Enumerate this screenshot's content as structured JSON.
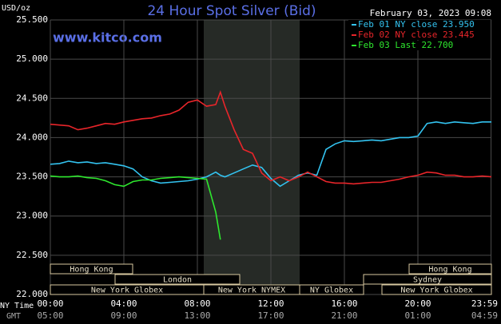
{
  "chart_data": {
    "type": "line",
    "title": "24 Hour Spot Silver (Bid)",
    "timestamp": "February 03, 2023 09:08",
    "watermark": "www.kitco.com",
    "y_label": "USD/oz",
    "x_label": "NY Time",
    "x2_label": "GMT",
    "xlim": [
      0,
      24
    ],
    "ylim": [
      22,
      25.5
    ],
    "xticks": [
      {
        "value": 0,
        "label": "00:00"
      },
      {
        "value": 4,
        "label": "04:00"
      },
      {
        "value": 8,
        "label": "08:00"
      },
      {
        "value": 12,
        "label": "12:00"
      },
      {
        "value": 16,
        "label": "16:00"
      },
      {
        "value": 20,
        "label": "20:00"
      },
      {
        "value": 23.98,
        "label": "23:59"
      }
    ],
    "gmt_ticks": [
      {
        "value": 0,
        "label": "05:00"
      },
      {
        "value": 4,
        "label": "09:00"
      },
      {
        "value": 8,
        "label": "13:00"
      },
      {
        "value": 12,
        "label": "17:00"
      },
      {
        "value": 16,
        "label": "21:00"
      },
      {
        "value": 20,
        "label": "01:00"
      },
      {
        "value": 23.98,
        "label": "04:59"
      }
    ],
    "yticks": [
      {
        "value": 22,
        "label": "22.000"
      },
      {
        "value": 22.5,
        "label": "22.500"
      },
      {
        "value": 23,
        "label": "23.000"
      },
      {
        "value": 23.5,
        "label": "23.500"
      },
      {
        "value": 24,
        "label": "24.000"
      },
      {
        "value": 24.5,
        "label": "24.500"
      },
      {
        "value": 25,
        "label": "25.000"
      },
      {
        "value": 25.5,
        "label": "25.500"
      }
    ],
    "grid": true,
    "legend": "top-right",
    "sessions": [
      "Hong Kong",
      "Hong Kong",
      "London",
      "Sydney",
      "New York Globex",
      "New York NYMEX",
      "NY Globex",
      "New York Globex"
    ],
    "x": [
      0,
      0.5,
      1,
      1.5,
      2,
      2.5,
      3,
      3.5,
      4,
      4.5,
      5,
      5.5,
      6,
      6.5,
      7,
      7.5,
      8,
      8.5,
      9,
      9.25,
      9.5,
      10,
      10.5,
      11,
      11.5,
      12,
      12.5,
      13,
      13.5,
      14,
      14.5,
      15,
      15.5,
      16,
      16.5,
      17,
      17.5,
      18,
      18.5,
      19,
      19.5,
      20,
      20.5,
      21,
      21.5,
      22,
      22.5,
      23,
      23.5,
      24
    ],
    "series": [
      {
        "name": "Feb 01 NY close 23.950",
        "color": "#33c3f0",
        "values": [
          23.66,
          23.67,
          23.7,
          23.68,
          23.69,
          23.67,
          23.68,
          23.66,
          23.64,
          23.6,
          23.5,
          23.45,
          23.42,
          23.43,
          23.44,
          23.45,
          23.47,
          23.5,
          23.56,
          23.52,
          23.5,
          23.55,
          23.6,
          23.65,
          23.62,
          23.48,
          23.38,
          23.45,
          23.52,
          23.55,
          23.52,
          23.85,
          23.92,
          23.96,
          23.95,
          23.96,
          23.97,
          23.96,
          23.98,
          24.0,
          24.0,
          24.02,
          24.18,
          24.2,
          24.18,
          24.2,
          24.19,
          24.18,
          24.2,
          24.2
        ]
      },
      {
        "name": "Feb 02 NY close 23.445",
        "color": "#e8252a",
        "values": [
          24.17,
          24.16,
          24.15,
          24.1,
          24.12,
          24.15,
          24.18,
          24.17,
          24.2,
          24.22,
          24.24,
          24.25,
          24.28,
          24.3,
          24.35,
          24.45,
          24.48,
          24.4,
          24.42,
          24.58,
          24.4,
          24.1,
          23.85,
          23.8,
          23.55,
          23.45,
          23.5,
          23.45,
          23.5,
          23.56,
          23.5,
          23.44,
          23.42,
          23.42,
          23.41,
          23.42,
          23.43,
          23.43,
          23.45,
          23.47,
          23.5,
          23.52,
          23.56,
          23.55,
          23.52,
          23.52,
          23.5,
          23.5,
          23.51,
          23.5
        ]
      },
      {
        "name": "Feb 03 Last 22.700",
        "color": "#2ee82e",
        "values": [
          23.51,
          23.5,
          23.5,
          23.51,
          23.49,
          23.48,
          23.45,
          23.4,
          23.38,
          23.44,
          23.46,
          23.46,
          23.48,
          23.49,
          23.5,
          23.49,
          23.48,
          23.47,
          23.05,
          22.7,
          null,
          null,
          null,
          null,
          null,
          null,
          null,
          null,
          null,
          null,
          null,
          null,
          null,
          null,
          null,
          null,
          null,
          null,
          null,
          null,
          null,
          null,
          null,
          null,
          null,
          null,
          null,
          null,
          null,
          null
        ]
      }
    ]
  }
}
